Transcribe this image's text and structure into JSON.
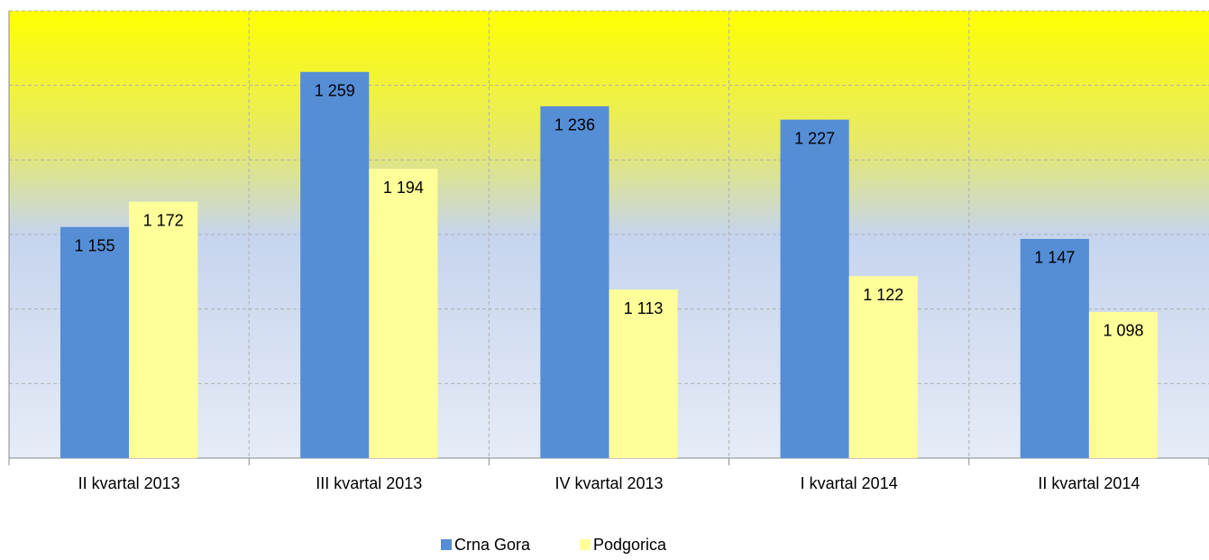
{
  "chart_data": {
    "type": "bar",
    "categories": [
      "II kvartal 2013",
      "III kvartal 2013",
      "IV kvartal 2013",
      "I kvartal 2014",
      "II kvartal 2014"
    ],
    "series": [
      {
        "name": "Crna Gora",
        "color": "#558ed5",
        "values": [
          1155,
          1259,
          1236,
          1227,
          1147
        ],
        "value_labels": [
          "1 155",
          "1 259",
          "1 236",
          "1 227",
          "1 147"
        ]
      },
      {
        "name": "Podgorica",
        "color": "#ffff99",
        "values": [
          1172,
          1194,
          1113,
          1122,
          1098
        ],
        "value_labels": [
          "1 172",
          "1 194",
          "1 113",
          "1 122",
          "1 098"
        ]
      }
    ],
    "ylim": [
      1000,
      1300
    ],
    "yticks": [
      1000,
      1050,
      1100,
      1150,
      1200,
      1250,
      1300
    ],
    "grid": true
  }
}
